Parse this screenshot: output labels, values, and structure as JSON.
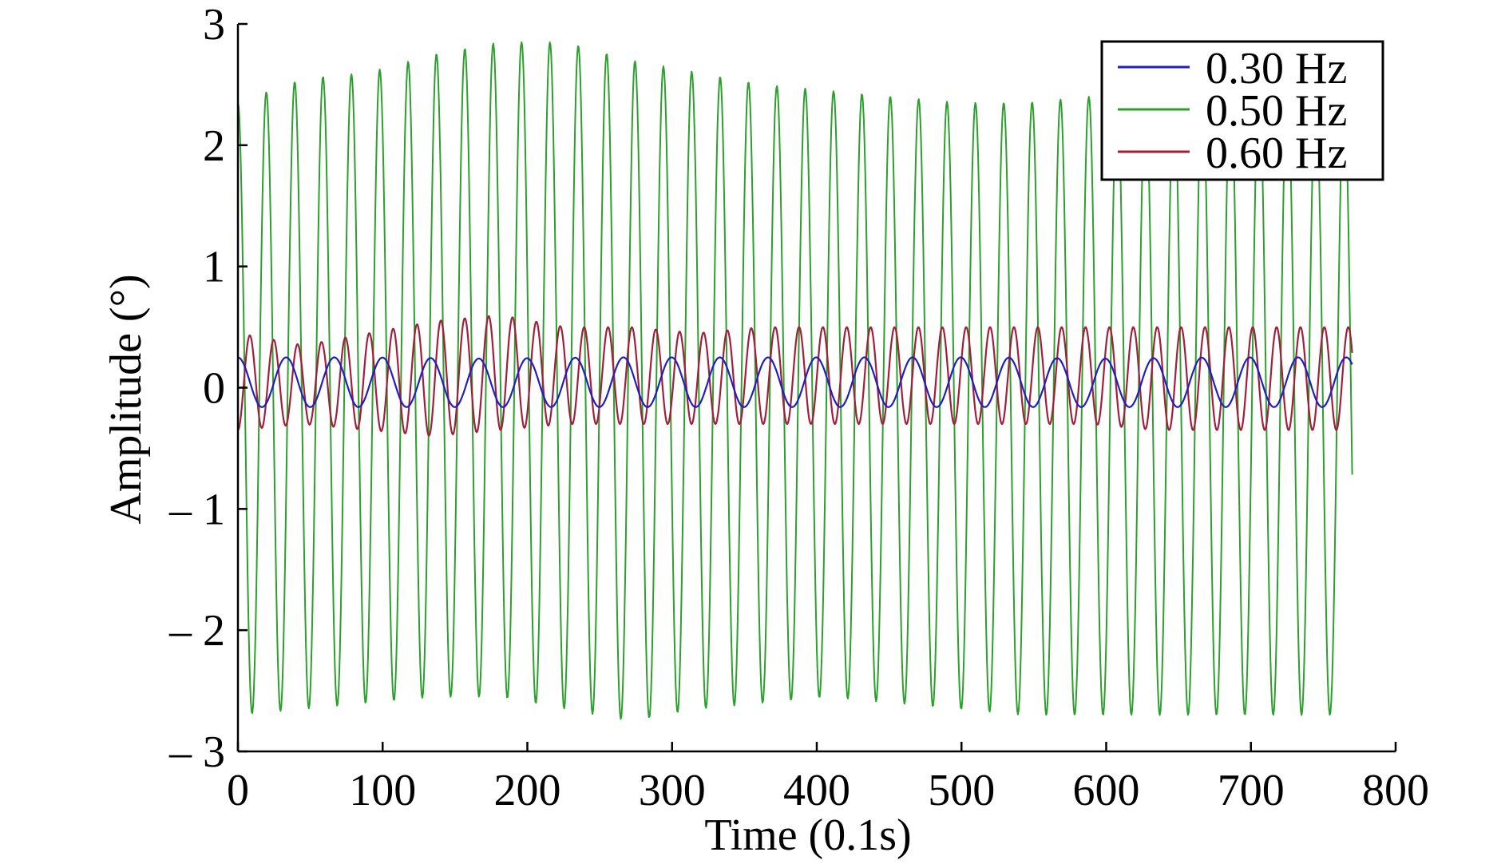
{
  "chart_data": {
    "type": "line",
    "title": "",
    "xlabel": "Time (0.1s)",
    "ylabel": "Amplitude (°)",
    "xlim": [
      0,
      800
    ],
    "ylim": [
      -3,
      3
    ],
    "x_ticks": [
      0,
      100,
      200,
      300,
      400,
      500,
      600,
      700,
      800
    ],
    "x_tick_labels": [
      "0",
      "100",
      "200",
      "300",
      "400",
      "500",
      "600",
      "700",
      "800"
    ],
    "y_ticks": [
      3,
      2,
      1,
      0,
      -1,
      -2,
      -3
    ],
    "y_tick_labels": [
      "3",
      "2",
      "1",
      "0",
      "– 1",
      "– 2",
      "– 3"
    ],
    "grid": false,
    "legend_position": "top-right",
    "x_end": 770,
    "series": [
      {
        "name": "0.30 Hz",
        "color": "#1f1fbf",
        "frequency_hz": 0.3,
        "period_samples": 33.3,
        "phase_deg": 90,
        "peaks": [
          0.25,
          0.25,
          0.24,
          0.25,
          0.25,
          0.25,
          0.25,
          0.24,
          0.25,
          0.25
        ],
        "troughs": [
          -0.16,
          -0.16,
          -0.16,
          -0.16,
          -0.16,
          -0.16,
          -0.16,
          -0.16,
          -0.16,
          -0.16
        ]
      },
      {
        "name": "0.50 Hz",
        "color": "#2ca02c",
        "frequency_hz": 0.5,
        "period_samples": 19.6,
        "phase_deg": 90,
        "peaks": [
          2.35,
          2.55,
          2.6,
          2.75,
          2.85,
          2.85,
          2.7,
          2.6,
          2.5,
          2.45,
          2.4,
          2.35,
          2.35,
          2.4,
          2.45,
          2.5,
          2.5,
          2.4
        ],
        "troughs": [
          -2.7,
          -2.65,
          -2.6,
          -2.55,
          -2.55,
          -2.65,
          -2.75,
          -2.65,
          -2.6,
          -2.55,
          -2.6,
          -2.65,
          -2.7,
          -2.7,
          -2.7,
          -2.7,
          -2.7,
          -2.7
        ]
      },
      {
        "name": "0.60 Hz",
        "color": "#a0203c",
        "frequency_hz": 0.6,
        "period_samples": 16.5,
        "phase_deg": -90,
        "peaks": [
          0.45,
          0.35,
          0.45,
          0.55,
          0.6,
          0.5,
          0.5,
          0.45,
          0.5,
          0.5,
          0.5,
          0.5,
          0.5,
          0.5,
          0.5,
          0.5,
          0.5,
          0.5
        ],
        "troughs": [
          -0.35,
          -0.3,
          -0.35,
          -0.4,
          -0.35,
          -0.3,
          -0.3,
          -0.3,
          -0.3,
          -0.3,
          -0.3,
          -0.3,
          -0.3,
          -0.3,
          -0.35,
          -0.35,
          -0.35,
          -0.35
        ]
      }
    ]
  }
}
